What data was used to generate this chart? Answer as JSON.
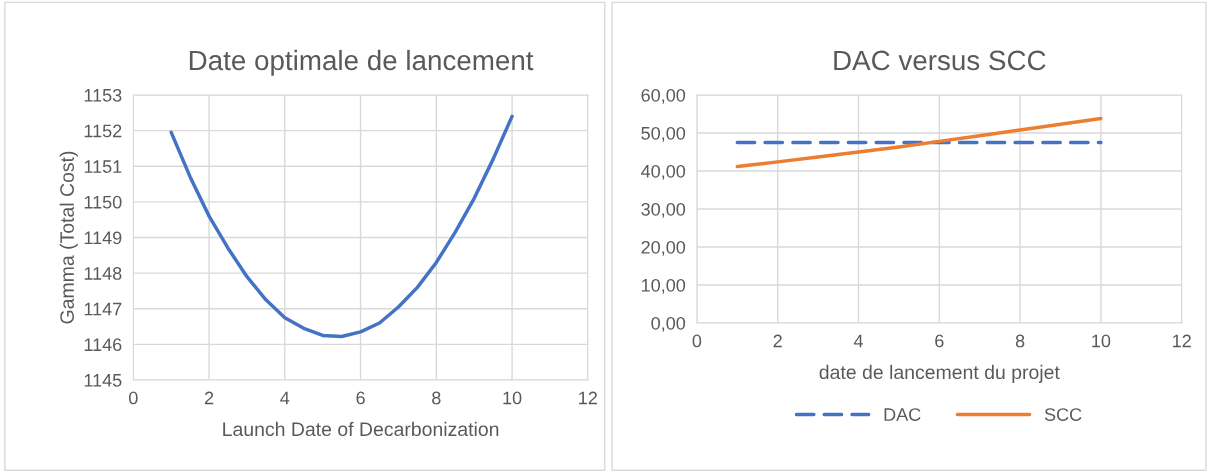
{
  "chart_data": [
    {
      "type": "line",
      "title": "Date optimale de lancement",
      "xlabel": "Launch Date of Decarbonization",
      "ylabel": "Gamma (Total Cost)",
      "x": [
        1,
        1.5,
        2,
        2.5,
        3,
        3.5,
        4,
        4.5,
        5,
        5.5,
        6,
        6.5,
        7,
        7.5,
        8,
        8.5,
        9,
        9.5,
        10
      ],
      "series": [
        {
          "color": "#4472c4",
          "values": [
            1151.95,
            1150.7,
            1149.6,
            1148.7,
            1147.9,
            1147.25,
            1146.75,
            1146.45,
            1146.25,
            1146.22,
            1146.35,
            1146.6,
            1147.05,
            1147.6,
            1148.3,
            1149.15,
            1150.1,
            1151.2,
            1152.4
          ]
        }
      ],
      "xlim": [
        0,
        12
      ],
      "xticks": [
        0,
        2,
        4,
        6,
        8,
        10,
        12
      ],
      "ylim": [
        1145,
        1153
      ],
      "yticks": [
        1145,
        1146,
        1147,
        1148,
        1149,
        1150,
        1151,
        1152,
        1153
      ],
      "grid": true,
      "legend": false,
      "line_style": "solid",
      "marker": "none"
    },
    {
      "type": "line",
      "title": "DAC versus SCC",
      "xlabel": "date de lancement du projet",
      "x": [
        1,
        2,
        3,
        4,
        5,
        6,
        7,
        8,
        9,
        10
      ],
      "series": [
        {
          "name": "DAC",
          "color": "#4472c4",
          "line_style": "dashed",
          "values": [
            47.5,
            47.5,
            47.5,
            47.5,
            47.5,
            47.5,
            47.5,
            47.5,
            47.5,
            47.5
          ]
        },
        {
          "name": "SCC",
          "color": "#ed7d31",
          "line_style": "solid",
          "values": [
            41.2,
            42.4,
            43.7,
            45.0,
            46.3,
            47.8,
            49.3,
            50.8,
            52.3,
            53.8
          ]
        }
      ],
      "xlim": [
        0,
        12
      ],
      "xticks": [
        0,
        2,
        4,
        6,
        8,
        10,
        12
      ],
      "ylim": [
        0,
        60
      ],
      "yticks": [
        {
          "value": 0,
          "label": "0,00"
        },
        {
          "value": 10,
          "label": "10,00"
        },
        {
          "value": 20,
          "label": "20,00"
        },
        {
          "value": 30,
          "label": "30,00"
        },
        {
          "value": 40,
          "label": "40,00"
        },
        {
          "value": 50,
          "label": "50,00"
        },
        {
          "value": 60,
          "label": "60,00"
        }
      ],
      "grid": true,
      "legend": "bottom",
      "marker": "none"
    }
  ]
}
